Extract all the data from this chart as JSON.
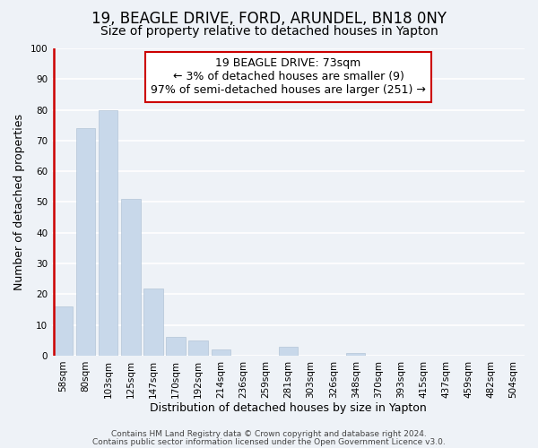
{
  "title": "19, BEAGLE DRIVE, FORD, ARUNDEL, BN18 0NY",
  "subtitle": "Size of property relative to detached houses in Yapton",
  "xlabel": "Distribution of detached houses by size in Yapton",
  "ylabel": "Number of detached properties",
  "bar_labels": [
    "58sqm",
    "80sqm",
    "103sqm",
    "125sqm",
    "147sqm",
    "170sqm",
    "192sqm",
    "214sqm",
    "236sqm",
    "259sqm",
    "281sqm",
    "303sqm",
    "326sqm",
    "348sqm",
    "370sqm",
    "393sqm",
    "415sqm",
    "437sqm",
    "459sqm",
    "482sqm",
    "504sqm"
  ],
  "bar_values": [
    16,
    74,
    80,
    51,
    22,
    6,
    5,
    2,
    0,
    0,
    3,
    0,
    0,
    1,
    0,
    0,
    0,
    0,
    0,
    0,
    0
  ],
  "bar_color": "#c8d8ea",
  "highlight_color": "#cc0000",
  "annotation_title": "19 BEAGLE DRIVE: 73sqm",
  "annotation_line1": "← 3% of detached houses are smaller (9)",
  "annotation_line2": "97% of semi-detached houses are larger (251) →",
  "annotation_box_color": "#ffffff",
  "annotation_box_edgecolor": "#cc0000",
  "ylim": [
    0,
    100
  ],
  "yticks": [
    0,
    10,
    20,
    30,
    40,
    50,
    60,
    70,
    80,
    90,
    100
  ],
  "footnote1": "Contains HM Land Registry data © Crown copyright and database right 2024.",
  "footnote2": "Contains public sector information licensed under the Open Government Licence v3.0.",
  "background_color": "#eef2f7",
  "grid_color": "#ffffff",
  "title_fontsize": 12,
  "subtitle_fontsize": 10,
  "axis_label_fontsize": 9,
  "tick_fontsize": 7.5,
  "annotation_fontsize": 9,
  "footnote_fontsize": 6.5
}
